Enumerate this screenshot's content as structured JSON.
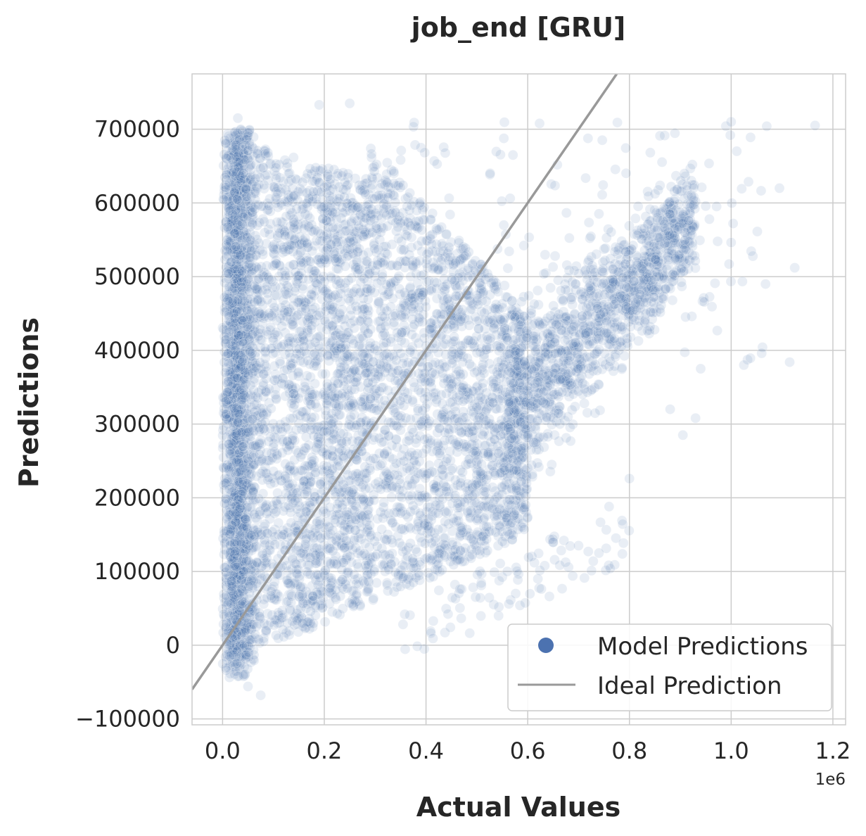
{
  "chart_data": {
    "type": "scatter",
    "title": "job_end [GRU]",
    "xlabel": "Actual Values",
    "ylabel": "Predictions",
    "x_offset_label": "1e6",
    "xlim": [
      -60000,
      1225000
    ],
    "ylim": [
      -108000,
      775000
    ],
    "xticks": [
      0,
      200000,
      400000,
      600000,
      800000,
      1000000,
      1200000
    ],
    "xtick_labels": [
      "0.0",
      "0.2",
      "0.4",
      "0.6",
      "0.8",
      "1.0",
      "1.2"
    ],
    "yticks": [
      -100000,
      0,
      100000,
      200000,
      300000,
      400000,
      500000,
      600000,
      700000
    ],
    "ytick_labels": [
      "−100000",
      "0",
      "100000",
      "200000",
      "300000",
      "400000",
      "500000",
      "600000",
      "700000"
    ],
    "grid": true,
    "legend_position": "bottom-right",
    "series": [
      {
        "name": "Model Predictions",
        "kind": "scatter",
        "color": "#4c72b0",
        "alpha": 0.12,
        "regions": [
          {
            "x_range": [
              0,
              60000
            ],
            "y_range": [
              -50000,
              710000
            ],
            "density": "very high"
          },
          {
            "x_range": [
              60000,
              290000
            ],
            "y_range": [
              20000,
              680000
            ],
            "density": "high"
          },
          {
            "x_range": [
              290000,
              560000
            ],
            "y_range": [
              80000,
              520000
            ],
            "density": "high"
          },
          {
            "x_range": [
              560000,
              930000
            ],
            "y_range": [
              250000,
              600000
            ],
            "density": "medium"
          }
        ],
        "notable_points": [
          [
            1165000,
            705000
          ],
          [
            1125000,
            512000
          ],
          [
            1115000,
            384000
          ],
          [
            1095000,
            620000
          ],
          [
            1070000,
            704000
          ],
          [
            1060000,
            396000
          ],
          [
            1025000,
            380000
          ],
          [
            1000000,
            710000
          ],
          [
            940000,
            375000
          ],
          [
            930000,
            308000
          ],
          [
            905000,
            285000
          ],
          [
            880000,
            320000
          ],
          [
            800000,
            226000
          ],
          [
            760000,
            188000
          ],
          [
            740000,
            125000
          ],
          [
            700000,
            135000
          ],
          [
            620000,
            90000
          ],
          [
            560000,
            100000
          ],
          [
            470000,
            76000
          ],
          [
            190000,
            733000
          ],
          [
            250000,
            735000
          ],
          [
            30000,
            715000
          ],
          [
            75000,
            -68000
          ],
          [
            50000,
            -56000
          ]
        ]
      },
      {
        "name": "Ideal Prediction",
        "kind": "line",
        "color": "#999999",
        "points": [
          [
            -60000,
            -60000
          ],
          [
            775000,
            775000
          ]
        ]
      }
    ]
  }
}
